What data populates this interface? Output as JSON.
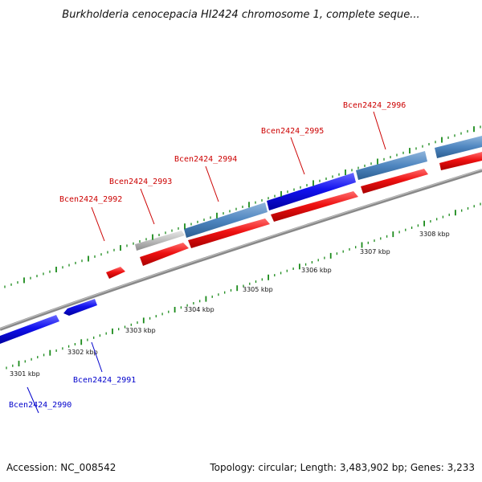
{
  "title": "Burkholderia cenocepacia HI2424 chromosome 1, complete seque...",
  "footer": {
    "accession": "Accession: NC_008542",
    "topology": "Topology: circular; Length: 3,483,902 bp; Genes: 3,233"
  },
  "scale_labels": [
    "3301 kbp",
    "3302 kbp",
    "3303 kbp",
    "3304 kbp",
    "3305 kbp",
    "3306 kbp",
    "3307 kbp",
    "3308 kbp"
  ],
  "gene_labels": {
    "g2990": "Bcen2424_2990",
    "g2991": "Bcen2424_2991",
    "g2992": "Bcen2424_2992",
    "g2993": "Bcen2424_2993",
    "g2994": "Bcen2424_2994",
    "g2995": "Bcen2424_2995",
    "g2996": "Bcen2424_2996"
  },
  "colors": {
    "forward_label": "#cc0000",
    "reverse_label": "#0000cc",
    "red_gene": "#ee1111",
    "blue_gene": "#1111ee",
    "steel_gene": "#4f86c0",
    "gray_gene": "#bdbdbd",
    "backbone": "#888888",
    "tick": "#1a8a1a"
  }
}
